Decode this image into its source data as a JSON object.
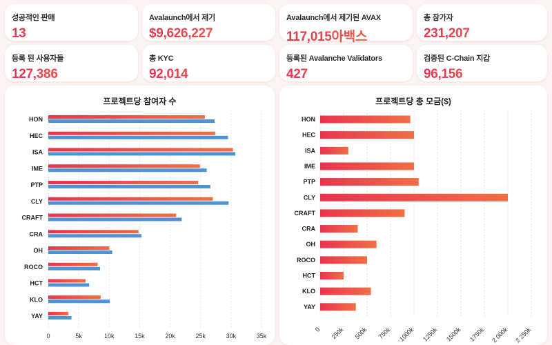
{
  "stats": [
    {
      "label": "성공적인 판매",
      "value": "13"
    },
    {
      "label": "Avalaunch에서 제기",
      "value": "$9,626,227"
    },
    {
      "label": "Avalaunch에서 제기된 AVAX",
      "value": "117,015아백스"
    },
    {
      "label": "총 참가자",
      "value": "231,207"
    },
    {
      "label": "등록 된 사용자들",
      "value": "127,386"
    },
    {
      "label": "총 KYC",
      "value": "92,014"
    },
    {
      "label": "등록된 Avalanche Validators",
      "value": "427"
    },
    {
      "label": "검증된 C-Chain 지갑",
      "value": "96,156"
    }
  ],
  "colors": {
    "red": "#e8344f",
    "orange": "#ef6f45",
    "blue": "#4f93d6",
    "grid": "#e6e6e6"
  },
  "chart_data": [
    {
      "type": "bar",
      "orientation": "horizontal",
      "title": "프로젝트당 참여자 수",
      "categories": [
        "HON",
        "HEC",
        "ISA",
        "IME",
        "PTP",
        "CLY",
        "CRAFT",
        "CRA",
        "OH",
        "ROCO",
        "HCT",
        "KLO",
        "YAY"
      ],
      "series": [
        {
          "color": "red",
          "values": [
            25700,
            27400,
            30300,
            24900,
            24600,
            27000,
            21000,
            14800,
            10000,
            8100,
            6100,
            8600,
            3300
          ]
        },
        {
          "color": "blue",
          "values": [
            27300,
            29500,
            30700,
            26000,
            26600,
            29600,
            21900,
            15300,
            10500,
            8500,
            6700,
            10100,
            3800
          ]
        }
      ],
      "xlim": [
        0,
        35000
      ],
      "xticks": [
        "0",
        "5k",
        "10k",
        "15k",
        "20k",
        "25k",
        "30k",
        "35k"
      ],
      "xtick_values": [
        0,
        5000,
        10000,
        15000,
        20000,
        25000,
        30000,
        35000
      ],
      "grid": true
    },
    {
      "type": "bar",
      "orientation": "horizontal",
      "title": "프로젝트당 총 모금($)",
      "categories": [
        "HON",
        "HEC",
        "ISA",
        "IME",
        "PTP",
        "CLY",
        "CRAFT",
        "CRA",
        "OH",
        "ROCO",
        "HCT",
        "KLO",
        "YAY"
      ],
      "series": [
        {
          "color": "red",
          "values": [
            960000,
            1000000,
            300000,
            1000000,
            1050000,
            2000000,
            900000,
            400000,
            600000,
            500000,
            250000,
            540000,
            380000
          ]
        }
      ],
      "xlim": [
        0,
        2250000
      ],
      "xticks": [
        "0",
        "250k",
        "500k",
        "750k",
        "1000k",
        "1250k",
        "1500k",
        "1750k",
        "2 000k",
        "2 250k"
      ],
      "xtick_values": [
        0,
        250000,
        500000,
        750000,
        1000000,
        1250000,
        1500000,
        1750000,
        2000000,
        2250000
      ],
      "grid": true
    }
  ]
}
